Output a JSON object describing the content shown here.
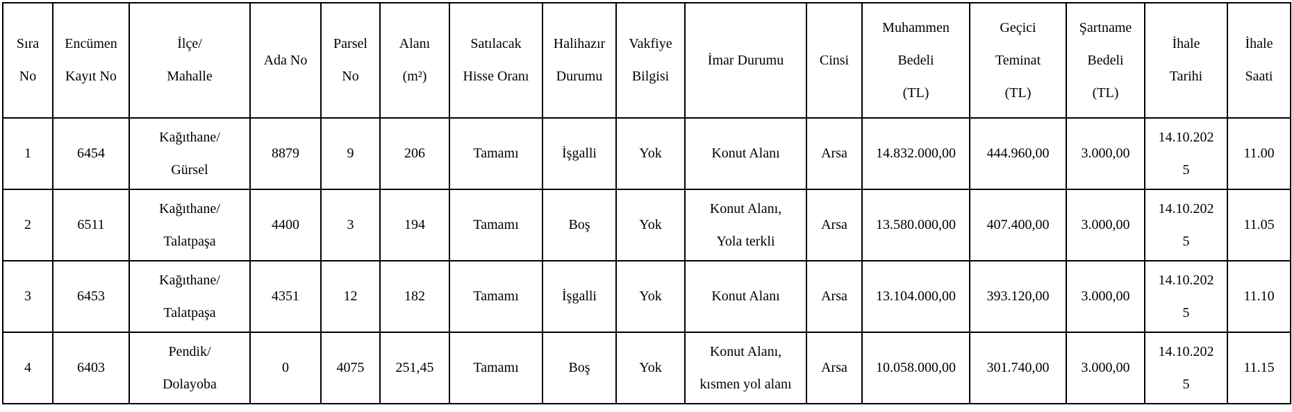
{
  "table": {
    "columns": [
      {
        "id": "sira-no",
        "label": "Sıra\nNo"
      },
      {
        "id": "encumen-kayit-no",
        "label": "Encümen\nKayıt No"
      },
      {
        "id": "ilce-mahalle",
        "label": "İlçe/\nMahalle"
      },
      {
        "id": "ada-no",
        "label": "Ada No"
      },
      {
        "id": "parsel-no",
        "label": "Parsel\nNo"
      },
      {
        "id": "alani-m2",
        "label": "Alanı\n(m²)"
      },
      {
        "id": "satilacak-hisse-orani",
        "label": "Satılacak\nHisse Oranı"
      },
      {
        "id": "halihazir-durumu",
        "label": "Halihazır\nDurumu"
      },
      {
        "id": "vakfiye-bilgisi",
        "label": "Vakfiye\nBilgisi"
      },
      {
        "id": "imar-durumu",
        "label": "İmar Durumu"
      },
      {
        "id": "cinsi",
        "label": "Cinsi"
      },
      {
        "id": "muhammen-bedeli-tl",
        "label": "Muhammen\nBedeli\n(TL)"
      },
      {
        "id": "gecici-teminat-tl",
        "label": "Geçici\nTeminat\n(TL)"
      },
      {
        "id": "sartname-bedeli-tl",
        "label": "Şartname\nBedeli\n(TL)"
      },
      {
        "id": "ihale-tarihi",
        "label": "İhale\nTarihi"
      },
      {
        "id": "ihale-saati",
        "label": "İhale\nSaati"
      }
    ],
    "rows": [
      {
        "cells": [
          "1",
          "6454",
          "Kağıthane/\nGürsel",
          "8879",
          "9",
          "206",
          "Tamamı",
          "İşgalli",
          "Yok",
          "Konut Alanı",
          "Arsa",
          "14.832.000,00",
          "444.960,00",
          "3.000,00",
          "14.10.2025",
          "11.00"
        ]
      },
      {
        "cells": [
          "2",
          "6511",
          "Kağıthane/\nTalatpaşa",
          "4400",
          "3",
          "194",
          "Tamamı",
          "Boş",
          "Yok",
          "Konut Alanı,\nYola terkli",
          "Arsa",
          "13.580.000,00",
          "407.400,00",
          "3.000,00",
          "14.10.2025",
          "11.05"
        ]
      },
      {
        "cells": [
          "3",
          "6453",
          "Kağıthane/\nTalatpaşa",
          "4351",
          "12",
          "182",
          "Tamamı",
          "İşgalli",
          "Yok",
          "Konut Alanı",
          "Arsa",
          "13.104.000,00",
          "393.120,00",
          "3.000,00",
          "14.10.2025",
          "11.10"
        ]
      },
      {
        "cells": [
          "4",
          "6403",
          "Pendik/\nDolayoba",
          "0",
          "4075",
          "251,45",
          "Tamamı",
          "Boş",
          "Yok",
          "Konut Alanı,\nkısmen yol alanı",
          "Arsa",
          "10.058.000,00",
          "301.740,00",
          "3.000,00",
          "14.10.2025",
          "11.15"
        ]
      }
    ]
  }
}
